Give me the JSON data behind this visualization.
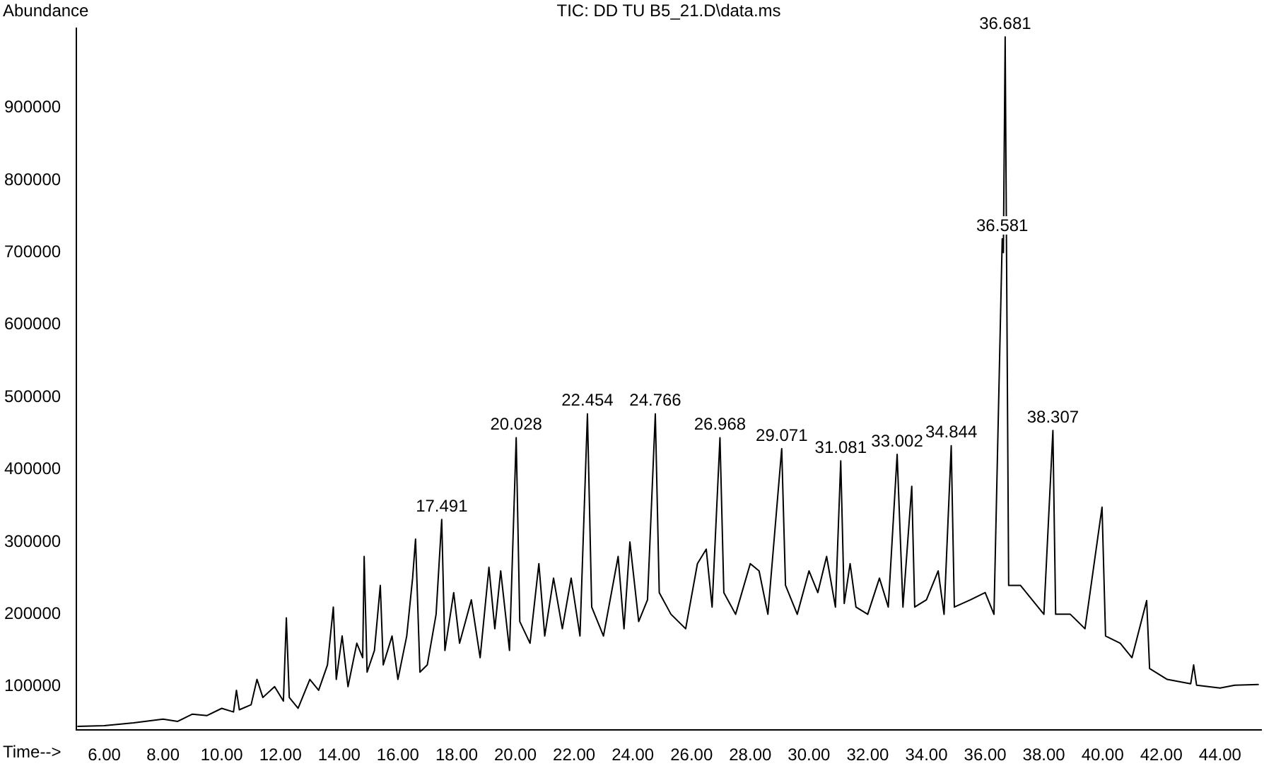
{
  "chart_data": {
    "type": "line",
    "title": "TIC: DD TU B5_21.D\\data.ms",
    "xlabel": "Time-->",
    "ylabel": "Abundance",
    "legend": false,
    "grid": false,
    "marker": "none",
    "line_style": "solid",
    "xlim": [
      5.05,
      45.4
    ],
    "xticks": [
      {
        "value": 6,
        "label": "6.00"
      },
      {
        "value": 8,
        "label": "8.00"
      },
      {
        "value": 10,
        "label": "10.00"
      },
      {
        "value": 12,
        "label": "12.00"
      },
      {
        "value": 14,
        "label": "14.00"
      },
      {
        "value": 16,
        "label": "16.00"
      },
      {
        "value": 18,
        "label": "18.00"
      },
      {
        "value": 20,
        "label": "20.00"
      },
      {
        "value": 22,
        "label": "22.00"
      },
      {
        "value": 24,
        "label": "24.00"
      },
      {
        "value": 26,
        "label": "26.00"
      },
      {
        "value": 28,
        "label": "28.00"
      },
      {
        "value": 30,
        "label": "30.00"
      },
      {
        "value": 32,
        "label": "32.00"
      },
      {
        "value": 34,
        "label": "34.00"
      },
      {
        "value": 36,
        "label": "36.00"
      },
      {
        "value": 38,
        "label": "38.00"
      },
      {
        "value": 40,
        "label": "40.00"
      },
      {
        "value": 42,
        "label": "42.00"
      },
      {
        "value": 44,
        "label": "44.00"
      }
    ],
    "ylim": [
      40000,
      1010000
    ],
    "yticks": [
      100000,
      200000,
      300000,
      400000,
      500000,
      600000,
      700000,
      800000,
      900000
    ],
    "x": [
      5.1,
      6,
      7,
      8,
      8.5,
      9,
      9.5,
      10,
      10.4,
      10.5,
      10.6,
      11,
      11.2,
      11.4,
      11.8,
      12.1,
      12.2,
      12.3,
      12.6,
      13,
      13.3,
      13.6,
      13.8,
      13.9,
      14.1,
      14.3,
      14.6,
      14.8,
      14.85,
      14.95,
      15.2,
      15.4,
      15.5,
      15.8,
      16,
      16.3,
      16.5,
      16.6,
      16.75,
      17,
      17.3,
      17.491,
      17.6,
      17.9,
      18.1,
      18.5,
      18.8,
      19.1,
      19.3,
      19.5,
      19.8,
      20.028,
      20.15,
      20.5,
      20.8,
      21,
      21.3,
      21.6,
      21.9,
      22.2,
      22.454,
      22.6,
      23,
      23.5,
      23.7,
      23.9,
      24.2,
      24.5,
      24.766,
      24.9,
      25.3,
      25.8,
      26.2,
      26.5,
      26.7,
      26.968,
      27.1,
      27.5,
      28,
      28.3,
      28.6,
      29.071,
      29.2,
      29.6,
      30,
      30.3,
      30.6,
      30.9,
      31.081,
      31.2,
      31.4,
      31.6,
      32,
      32.4,
      32.7,
      33.002,
      33.2,
      33.5,
      33.6,
      34,
      34.4,
      34.6,
      34.844,
      34.95,
      35.5,
      36,
      36.3,
      36.581,
      36.62,
      36.681,
      36.8,
      37.2,
      37.6,
      38,
      38.307,
      38.4,
      38.9,
      39.4,
      39.98,
      40.1,
      40.6,
      41,
      41.5,
      41.6,
      42.2,
      43,
      43.1,
      43.2,
      44,
      44.5,
      45.3
    ],
    "series": [
      {
        "color": "#000000",
        "values": [
          45000,
          46000,
          50000,
          55000,
          52000,
          62000,
          60000,
          70000,
          65000,
          95000,
          68000,
          75000,
          110000,
          85000,
          100000,
          80000,
          195000,
          85000,
          70000,
          110000,
          95000,
          130000,
          210000,
          110000,
          170000,
          100000,
          160000,
          140000,
          280000,
          120000,
          150000,
          240000,
          130000,
          170000,
          110000,
          170000,
          250000,
          304000,
          120000,
          130000,
          200000,
          331000,
          150000,
          230000,
          160000,
          220000,
          140000,
          265000,
          180000,
          260000,
          150000,
          444000,
          190000,
          160000,
          270000,
          170000,
          250000,
          180000,
          250000,
          170000,
          477000,
          210000,
          170000,
          280000,
          180000,
          300000,
          190000,
          220000,
          477000,
          230000,
          200000,
          180000,
          270000,
          290000,
          210000,
          444000,
          230000,
          200000,
          270000,
          260000,
          200000,
          429000,
          240000,
          200000,
          260000,
          230000,
          280000,
          210000,
          412000,
          215000,
          270000,
          210000,
          200000,
          250000,
          210000,
          421000,
          210000,
          377000,
          210000,
          220000,
          260000,
          200000,
          433000,
          210000,
          220000,
          230000,
          200000,
          719000,
          700000,
          998000,
          240000,
          240000,
          220000,
          200000,
          454000,
          200000,
          200000,
          180000,
          348000,
          170000,
          160000,
          140000,
          219000,
          125000,
          110000,
          104000,
          130000,
          102000,
          98000,
          102000,
          103000
        ]
      }
    ],
    "annotations": [
      {
        "text": "17.491",
        "x": 17.491,
        "y": 331000
      },
      {
        "text": "20.028",
        "x": 20.028,
        "y": 444000
      },
      {
        "text": "22.454",
        "x": 22.454,
        "y": 477000
      },
      {
        "text": "24.766",
        "x": 24.766,
        "y": 477000
      },
      {
        "text": "26.968",
        "x": 26.968,
        "y": 444000
      },
      {
        "text": "29.071",
        "x": 29.071,
        "y": 429000
      },
      {
        "text": "31.081",
        "x": 31.081,
        "y": 412000
      },
      {
        "text": "33.002",
        "x": 33.002,
        "y": 421000
      },
      {
        "text": "34.844",
        "x": 34.844,
        "y": 433000
      },
      {
        "text": "36.681",
        "x": 36.681,
        "y": 998000
      },
      {
        "text": "36.581",
        "x": 36.581,
        "y": 719000
      },
      {
        "text": "38.307",
        "x": 38.307,
        "y": 454000
      }
    ]
  }
}
